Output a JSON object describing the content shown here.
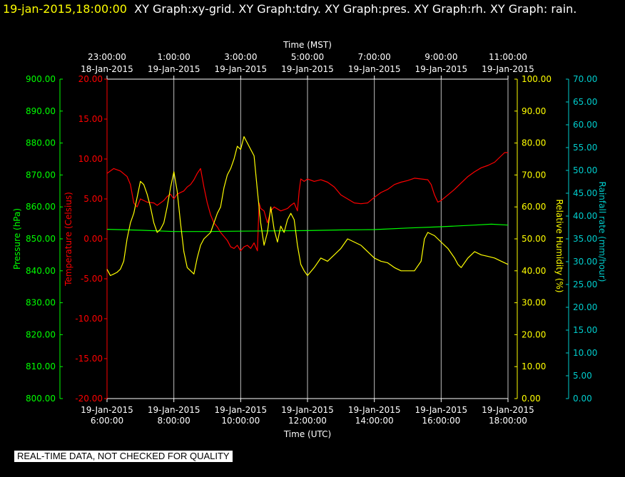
{
  "header": {
    "timestamp": "19-jan-2015,18:00:00",
    "title_rest": "XY Graph:xy-grid.  XY Graph:tdry.  XY Graph:pres.  XY Graph:rh.  XY Graph: rain."
  },
  "footer": {
    "notice": "REAL-TIME DATA, NOT CHECKED FOR QUALITY"
  },
  "colors": {
    "pressure": "#00ff00",
    "temperature": "#ff0000",
    "humidity": "#ffff00",
    "rain": "#00cccc",
    "grid": "#ffffff",
    "background": "#000000"
  },
  "chart_data": {
    "type": "line",
    "top_axis": {
      "label": "Time (MST)",
      "ticks": [
        {
          "time": "23:00:00",
          "date": "18-Jan-2015"
        },
        {
          "time": "1:00:00",
          "date": "19-Jan-2015"
        },
        {
          "time": "3:00:00",
          "date": "19-Jan-2015"
        },
        {
          "time": "5:00:00",
          "date": "19-Jan-2015"
        },
        {
          "time": "7:00:00",
          "date": "19-Jan-2015"
        },
        {
          "time": "9:00:00",
          "date": "19-Jan-2015"
        },
        {
          "time": "11:00:00",
          "date": "19-Jan-2015"
        }
      ]
    },
    "bottom_axis": {
      "label": "Time (UTC)",
      "xlim": [
        6,
        18
      ],
      "ticks": [
        {
          "date": "19-Jan-2015",
          "time": "6:00:00"
        },
        {
          "date": "19-Jan-2015",
          "time": "8:00:00"
        },
        {
          "date": "19-Jan-2015",
          "time": "10:00:00"
        },
        {
          "date": "19-Jan-2015",
          "time": "12:00:00"
        },
        {
          "date": "19-Jan-2015",
          "time": "14:00:00"
        },
        {
          "date": "19-Jan-2015",
          "time": "16:00:00"
        },
        {
          "date": "19-Jan-2015",
          "time": "18:00:00"
        }
      ]
    },
    "axes": {
      "pressure": {
        "label": "Pressure (hPa)",
        "ylim": [
          800,
          900
        ],
        "ticks": [
          "800.00",
          "810.00",
          "820.00",
          "830.00",
          "840.00",
          "850.00",
          "860.00",
          "870.00",
          "880.00",
          "890.00",
          "900.00"
        ]
      },
      "temperature": {
        "label": "Temperature (Celsius)",
        "ylim": [
          -20,
          20
        ],
        "ticks": [
          "-20.00",
          "-15.00",
          "-10.00",
          "-5.00",
          "0.00",
          "5.00",
          "10.00",
          "15.00",
          "20.00"
        ]
      },
      "humidity": {
        "label": "Relative Humidity (%)",
        "ylim": [
          0,
          100
        ],
        "ticks": [
          "0.00",
          "10.00",
          "20.00",
          "30.00",
          "40.00",
          "50.00",
          "60.00",
          "70.00",
          "80.00",
          "90.00",
          "100.00"
        ]
      },
      "rain": {
        "label": "Rainfall rate (mm/hour)",
        "ylim": [
          0,
          70
        ],
        "ticks": [
          "0.00",
          "5.00",
          "10.00",
          "15.00",
          "20.00",
          "25.00",
          "30.00",
          "35.00",
          "40.00",
          "45.00",
          "50.00",
          "55.00",
          "60.00",
          "65.00",
          "70.00"
        ]
      }
    },
    "grid": "vertical",
    "series": [
      {
        "key": "temperature",
        "axis": "temperature",
        "points": [
          [
            6.0,
            8.2
          ],
          [
            6.2,
            8.8
          ],
          [
            6.4,
            8.5
          ],
          [
            6.6,
            7.8
          ],
          [
            6.7,
            6.8
          ],
          [
            6.8,
            4.5
          ],
          [
            6.9,
            4.0
          ],
          [
            7.0,
            5.0
          ],
          [
            7.2,
            4.6
          ],
          [
            7.4,
            4.5
          ],
          [
            7.5,
            4.2
          ],
          [
            7.7,
            4.8
          ],
          [
            7.8,
            5.3
          ],
          [
            7.9,
            5.6
          ],
          [
            8.0,
            5.0
          ],
          [
            8.1,
            5.6
          ],
          [
            8.3,
            6.0
          ],
          [
            8.4,
            6.5
          ],
          [
            8.5,
            6.8
          ],
          [
            8.6,
            7.4
          ],
          [
            8.7,
            8.2
          ],
          [
            8.8,
            8.8
          ],
          [
            8.9,
            6.5
          ],
          [
            9.0,
            4.5
          ],
          [
            9.1,
            3.0
          ],
          [
            9.2,
            2.0
          ],
          [
            9.3,
            1.5
          ],
          [
            9.4,
            0.8
          ],
          [
            9.5,
            0.3
          ],
          [
            9.6,
            -0.2
          ],
          [
            9.7,
            -1.0
          ],
          [
            9.8,
            -1.2
          ],
          [
            9.9,
            -0.8
          ],
          [
            10.0,
            -1.5
          ],
          [
            10.1,
            -1.0
          ],
          [
            10.2,
            -0.8
          ],
          [
            10.3,
            -1.2
          ],
          [
            10.4,
            -0.5
          ],
          [
            10.5,
            -1.5
          ],
          [
            10.55,
            4.5
          ],
          [
            10.6,
            3.8
          ],
          [
            10.7,
            3.5
          ],
          [
            10.8,
            2.0
          ],
          [
            10.9,
            3.5
          ],
          [
            11.0,
            4.0
          ],
          [
            11.2,
            3.5
          ],
          [
            11.4,
            3.8
          ],
          [
            11.5,
            4.2
          ],
          [
            11.6,
            4.5
          ],
          [
            11.7,
            3.5
          ],
          [
            11.75,
            6.0
          ],
          [
            11.8,
            7.5
          ],
          [
            11.9,
            7.2
          ],
          [
            12.0,
            7.5
          ],
          [
            12.2,
            7.2
          ],
          [
            12.4,
            7.4
          ],
          [
            12.6,
            7.1
          ],
          [
            12.8,
            6.5
          ],
          [
            13.0,
            5.5
          ],
          [
            13.2,
            5.0
          ],
          [
            13.4,
            4.5
          ],
          [
            13.6,
            4.4
          ],
          [
            13.8,
            4.5
          ],
          [
            14.0,
            5.2
          ],
          [
            14.2,
            5.8
          ],
          [
            14.4,
            6.2
          ],
          [
            14.6,
            6.8
          ],
          [
            14.8,
            7.1
          ],
          [
            15.0,
            7.3
          ],
          [
            15.2,
            7.6
          ],
          [
            15.4,
            7.5
          ],
          [
            15.6,
            7.4
          ],
          [
            15.7,
            6.8
          ],
          [
            15.8,
            5.5
          ],
          [
            15.9,
            4.6
          ],
          [
            16.0,
            4.8
          ],
          [
            16.2,
            5.5
          ],
          [
            16.4,
            6.2
          ],
          [
            16.6,
            7.0
          ],
          [
            16.8,
            7.8
          ],
          [
            17.0,
            8.4
          ],
          [
            17.2,
            8.9
          ],
          [
            17.4,
            9.2
          ],
          [
            17.6,
            9.6
          ],
          [
            17.7,
            10.0
          ],
          [
            17.8,
            10.4
          ],
          [
            17.9,
            10.8
          ],
          [
            18.0,
            10.8
          ]
        ]
      },
      {
        "key": "pressure",
        "axis": "pressure",
        "points": [
          [
            6.0,
            853.0
          ],
          [
            7.0,
            852.7
          ],
          [
            8.0,
            852.3
          ],
          [
            9.0,
            852.3
          ],
          [
            10.0,
            852.4
          ],
          [
            11.0,
            852.5
          ],
          [
            12.0,
            852.6
          ],
          [
            13.0,
            852.8
          ],
          [
            14.0,
            852.9
          ],
          [
            15.0,
            853.4
          ],
          [
            16.0,
            853.8
          ],
          [
            17.0,
            854.3
          ],
          [
            17.5,
            854.6
          ],
          [
            18.0,
            854.3
          ]
        ]
      },
      {
        "key": "humidity",
        "axis": "humidity",
        "points": [
          [
            6.0,
            40.5
          ],
          [
            6.1,
            38.5
          ],
          [
            6.2,
            39.0
          ],
          [
            6.3,
            39.5
          ],
          [
            6.4,
            40.5
          ],
          [
            6.5,
            43.0
          ],
          [
            6.6,
            50.0
          ],
          [
            6.7,
            55.0
          ],
          [
            6.8,
            58.0
          ],
          [
            6.9,
            63.0
          ],
          [
            7.0,
            68.0
          ],
          [
            7.1,
            67.0
          ],
          [
            7.2,
            64.0
          ],
          [
            7.3,
            60.0
          ],
          [
            7.4,
            55.0
          ],
          [
            7.5,
            52.0
          ],
          [
            7.6,
            53.0
          ],
          [
            7.7,
            55.0
          ],
          [
            7.8,
            60.0
          ],
          [
            7.9,
            66.0
          ],
          [
            8.0,
            71.0
          ],
          [
            8.1,
            65.0
          ],
          [
            8.2,
            55.0
          ],
          [
            8.3,
            46.0
          ],
          [
            8.4,
            41.0
          ],
          [
            8.5,
            40.0
          ],
          [
            8.6,
            39.0
          ],
          [
            8.7,
            44.0
          ],
          [
            8.8,
            48.0
          ],
          [
            8.9,
            50.0
          ],
          [
            9.0,
            51.0
          ],
          [
            9.1,
            52.0
          ],
          [
            9.2,
            55.0
          ],
          [
            9.3,
            58.0
          ],
          [
            9.4,
            60.0
          ],
          [
            9.5,
            66.0
          ],
          [
            9.6,
            70.0
          ],
          [
            9.7,
            72.0
          ],
          [
            9.8,
            75.0
          ],
          [
            9.9,
            79.0
          ],
          [
            10.0,
            78.0
          ],
          [
            10.1,
            82.0
          ],
          [
            10.2,
            80.0
          ],
          [
            10.3,
            78.0
          ],
          [
            10.4,
            76.0
          ],
          [
            10.5,
            65.0
          ],
          [
            10.6,
            55.0
          ],
          [
            10.7,
            48.0
          ],
          [
            10.8,
            52.0
          ],
          [
            10.9,
            60.0
          ],
          [
            11.0,
            53.0
          ],
          [
            11.1,
            49.0
          ],
          [
            11.2,
            54.0
          ],
          [
            11.3,
            52.0
          ],
          [
            11.4,
            56.0
          ],
          [
            11.5,
            58.0
          ],
          [
            11.6,
            56.0
          ],
          [
            11.7,
            48.0
          ],
          [
            11.8,
            42.0
          ],
          [
            11.9,
            40.0
          ],
          [
            12.0,
            38.5
          ],
          [
            12.2,
            41.0
          ],
          [
            12.4,
            44.0
          ],
          [
            12.6,
            43.0
          ],
          [
            12.8,
            45.0
          ],
          [
            13.0,
            47.0
          ],
          [
            13.2,
            50.0
          ],
          [
            13.4,
            49.0
          ],
          [
            13.6,
            48.0
          ],
          [
            13.8,
            46.0
          ],
          [
            14.0,
            44.0
          ],
          [
            14.2,
            43.0
          ],
          [
            14.4,
            42.5
          ],
          [
            14.6,
            41.0
          ],
          [
            14.8,
            40.0
          ],
          [
            15.0,
            40.0
          ],
          [
            15.2,
            40.0
          ],
          [
            15.4,
            43.0
          ],
          [
            15.5,
            50.0
          ],
          [
            15.6,
            52.0
          ],
          [
            15.8,
            51.0
          ],
          [
            16.0,
            49.0
          ],
          [
            16.2,
            47.0
          ],
          [
            16.4,
            44.0
          ],
          [
            16.5,
            42.0
          ],
          [
            16.6,
            41.0
          ],
          [
            16.8,
            44.0
          ],
          [
            17.0,
            46.0
          ],
          [
            17.2,
            45.0
          ],
          [
            17.4,
            44.5
          ],
          [
            17.6,
            44.0
          ],
          [
            17.8,
            43.0
          ],
          [
            18.0,
            42.0
          ]
        ]
      }
    ]
  }
}
